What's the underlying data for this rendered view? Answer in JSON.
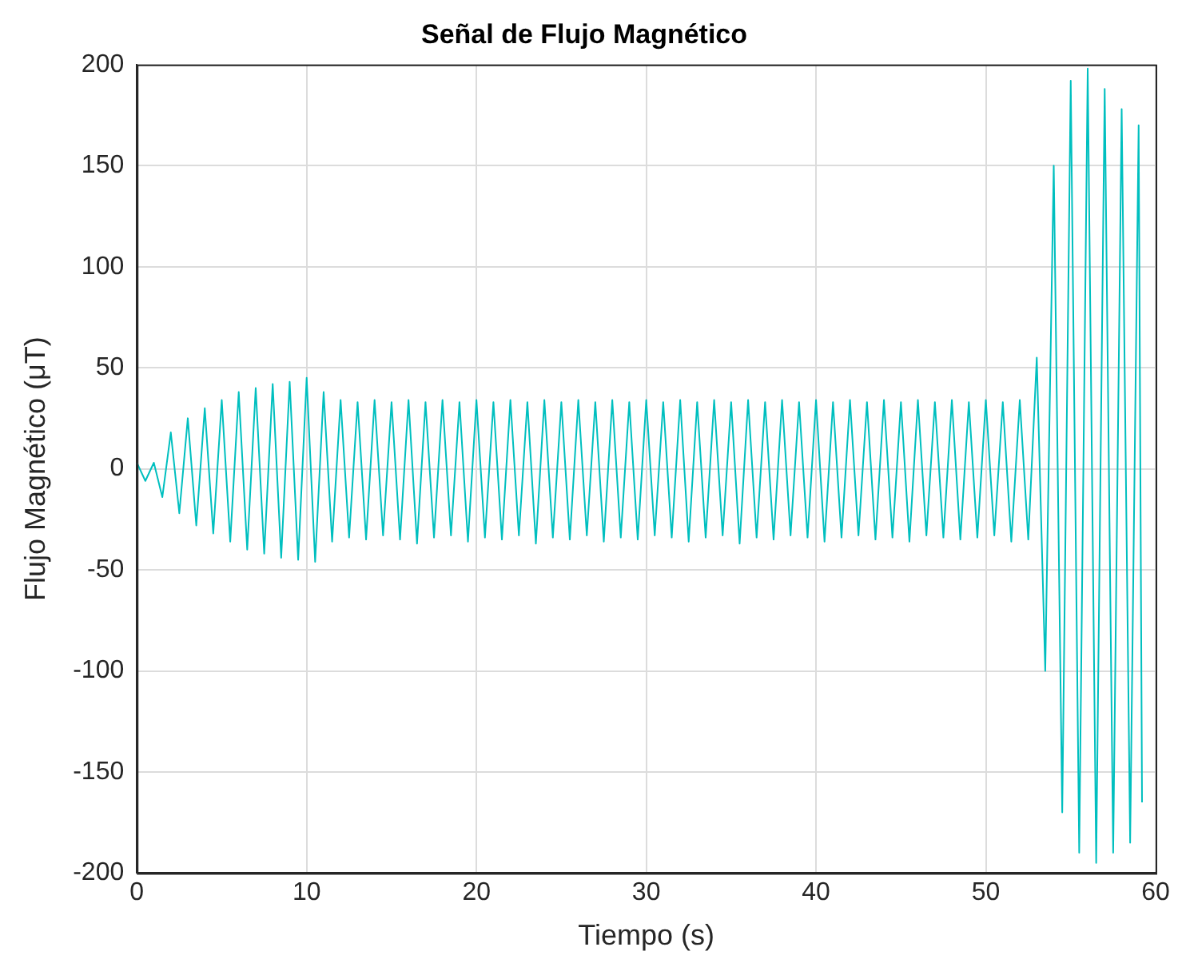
{
  "chart_data": {
    "type": "line",
    "title": "Señal de Flujo Magnético",
    "xlabel": "Tiempo (s)",
    "ylabel": "Flujo Magnético (μT)",
    "xlim": [
      0,
      60
    ],
    "xticks": [
      0,
      10,
      20,
      30,
      40,
      50,
      60
    ],
    "ylim": [
      -200,
      200
    ],
    "yticks": [
      -200,
      -150,
      -100,
      -50,
      0,
      50,
      100,
      150,
      200
    ],
    "grid": true,
    "legend": false,
    "marker": "none",
    "line_style": "solid",
    "series": [
      {
        "color": "#00bfbf",
        "x": [
          0,
          0.5,
          1,
          1.5,
          2,
          2.5,
          3,
          3.5,
          4,
          4.5,
          5,
          5.5,
          6,
          6.5,
          7,
          7.5,
          8,
          8.5,
          9,
          9.5,
          10,
          10.5,
          11,
          11.5,
          12,
          12.5,
          13,
          13.5,
          14,
          14.5,
          15,
          15.5,
          16,
          16.5,
          17,
          17.5,
          18,
          18.5,
          19,
          19.5,
          20,
          20.5,
          21,
          21.5,
          22,
          22.5,
          23,
          23.5,
          24,
          24.5,
          25,
          25.5,
          26,
          26.5,
          27,
          27.5,
          28,
          28.5,
          29,
          29.5,
          30,
          30.5,
          31,
          31.5,
          32,
          32.5,
          33,
          33.5,
          34,
          34.5,
          35,
          35.5,
          36,
          36.5,
          37,
          37.5,
          38,
          38.5,
          39,
          39.5,
          40,
          40.5,
          41,
          41.5,
          42,
          42.5,
          43,
          43.5,
          44,
          44.5,
          45,
          45.5,
          46,
          46.5,
          47,
          47.5,
          48,
          48.5,
          49,
          49.5,
          50,
          50.5,
          51,
          51.5,
          52,
          52.5,
          53,
          53.5,
          54,
          54.5,
          55,
          55.5,
          56,
          56.5,
          57,
          57.5,
          58,
          58.5,
          59,
          59.2
        ],
        "values": [
          3,
          -6,
          3,
          -14,
          18,
          -22,
          25,
          -28,
          30,
          -32,
          34,
          -36,
          38,
          -40,
          40,
          -42,
          42,
          -44,
          43,
          -45,
          45,
          -46,
          38,
          -36,
          34,
          -34,
          33,
          -35,
          34,
          -33,
          33,
          -35,
          34,
          -37,
          33,
          -34,
          34,
          -33,
          33,
          -36,
          34,
          -34,
          33,
          -35,
          34,
          -33,
          33,
          -37,
          34,
          -34,
          33,
          -35,
          34,
          -33,
          33,
          -36,
          34,
          -34,
          33,
          -35,
          34,
          -33,
          33,
          -34,
          34,
          -36,
          33,
          -34,
          34,
          -33,
          33,
          -37,
          34,
          -34,
          33,
          -35,
          34,
          -33,
          33,
          -34,
          34,
          -36,
          33,
          -34,
          34,
          -33,
          33,
          -35,
          34,
          -34,
          33,
          -36,
          34,
          -33,
          33,
          -34,
          34,
          -35,
          33,
          -34,
          34,
          -33,
          33,
          -36,
          34,
          -35,
          55,
          -100,
          150,
          -170,
          192,
          -190,
          198,
          -195,
          188,
          -190,
          178,
          -185,
          170,
          -165
        ]
      }
    ]
  }
}
